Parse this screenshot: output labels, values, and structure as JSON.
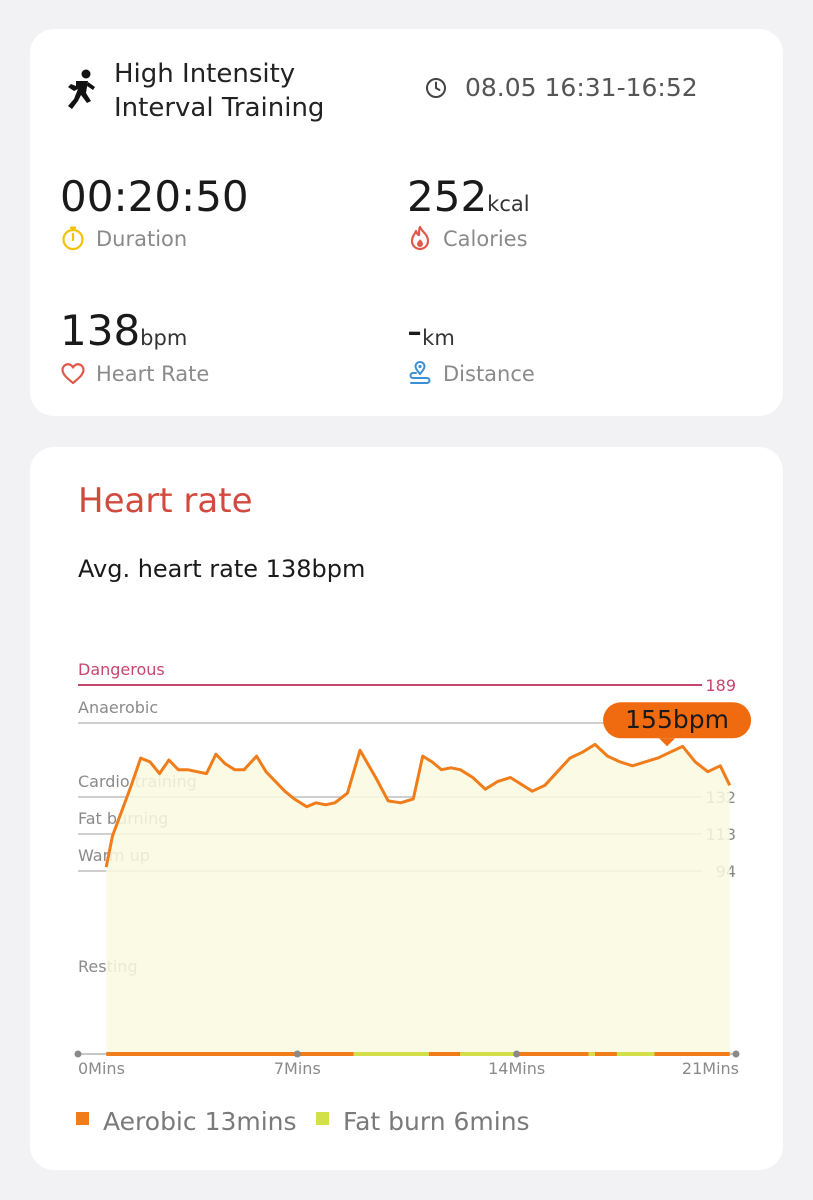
{
  "summary": {
    "title": "High Intensity\nInterval Training",
    "time_range": "08.05 16:31-16:52",
    "metrics": {
      "duration": {
        "value": "00:20:50",
        "unit": "",
        "label": "Duration"
      },
      "calories": {
        "value": "252",
        "unit": "kcal",
        "label": "Calories"
      },
      "heart_rate": {
        "value": "138",
        "unit": "bpm",
        "label": "Heart Rate"
      },
      "distance": {
        "value": "-",
        "unit": "km",
        "label": "Distance"
      }
    }
  },
  "colors": {
    "accent_red": "#d24a3e",
    "duration_icon": "#f2c200",
    "calories_icon": "#e0584a",
    "heart_icon": "#e0584a",
    "distance_icon": "#3b8fd6",
    "line": "#f07c1a",
    "fill": "#fafae0",
    "danger": "#c8456d"
  },
  "heart_rate": {
    "title": "Heart rate",
    "average_text": "Avg. heart rate 138bpm",
    "peak_label": "155bpm",
    "legend": [
      {
        "label": "Aerobic 13mins",
        "color": "#f07c1a"
      },
      {
        "label": "Fat burn 6mins",
        "color": "#d4e04a"
      }
    ]
  },
  "chart_data": {
    "type": "line",
    "title": "Heart rate",
    "x_tick_labels": [
      "0Mins",
      "7Mins",
      "14Mins",
      "21Mins"
    ],
    "xlim": [
      0,
      21
    ],
    "ylim": [
      0,
      189
    ],
    "zones": [
      {
        "name": "Dangerous",
        "threshold": 189
      },
      {
        "name": "Anaerobic",
        "threshold": 170
      },
      {
        "name": "Cardio training",
        "threshold": 132
      },
      {
        "name": "Fat burning",
        "threshold": 113
      },
      {
        "name": "Warm up",
        "threshold": 94
      },
      {
        "name": "Resting",
        "threshold": null
      }
    ],
    "series": [
      {
        "x": [
          0.9,
          1.1,
          1.4,
          1.7,
          2.0,
          2.3,
          2.6,
          2.9,
          3.2,
          3.5,
          3.8,
          4.1,
          4.4,
          4.7,
          5.0,
          5.3,
          5.7,
          6.0,
          6.3,
          6.6,
          6.9,
          7.3,
          7.6,
          7.9,
          8.2,
          8.6,
          9.0,
          9.5,
          9.9,
          10.3,
          10.7,
          11.0,
          11.3,
          11.6,
          11.9,
          12.2,
          12.6,
          13.0,
          13.4,
          13.8,
          14.1,
          14.5,
          14.9,
          15.3,
          15.7,
          16.1,
          16.5,
          16.9,
          17.3,
          17.7,
          18.1,
          18.5,
          18.9,
          19.3,
          19.7,
          20.1,
          20.5,
          20.8
        ],
        "y": [
          96,
          112,
          125,
          138,
          152,
          150,
          144,
          151,
          146,
          146,
          145,
          144,
          154,
          149,
          146,
          146,
          153,
          145,
          140,
          135,
          131,
          127,
          129,
          128,
          129,
          134,
          156,
          142,
          130,
          129,
          131,
          153,
          150,
          146,
          147,
          146,
          142,
          136,
          140,
          142,
          139,
          135,
          138,
          145,
          152,
          155,
          159,
          153,
          150,
          148,
          150,
          152,
          155,
          158,
          150,
          145,
          148,
          138
        ]
      }
    ],
    "peak": {
      "x": 18.8,
      "y": 155
    },
    "zone_bar": [
      {
        "from": 0.9,
        "to": 8.8,
        "zone": "Aerobic"
      },
      {
        "from": 8.8,
        "to": 11.2,
        "zone": "Fat burn"
      },
      {
        "from": 11.2,
        "to": 12.2,
        "zone": "Aerobic"
      },
      {
        "from": 12.2,
        "to": 14.0,
        "zone": "Fat burn"
      },
      {
        "from": 14.0,
        "to": 16.3,
        "zone": "Aerobic"
      },
      {
        "from": 16.3,
        "to": 16.5,
        "zone": "Fat burn"
      },
      {
        "from": 16.5,
        "to": 17.2,
        "zone": "Aerobic"
      },
      {
        "from": 17.2,
        "to": 18.4,
        "zone": "Fat burn"
      },
      {
        "from": 18.4,
        "to": 20.8,
        "zone": "Aerobic"
      }
    ]
  }
}
